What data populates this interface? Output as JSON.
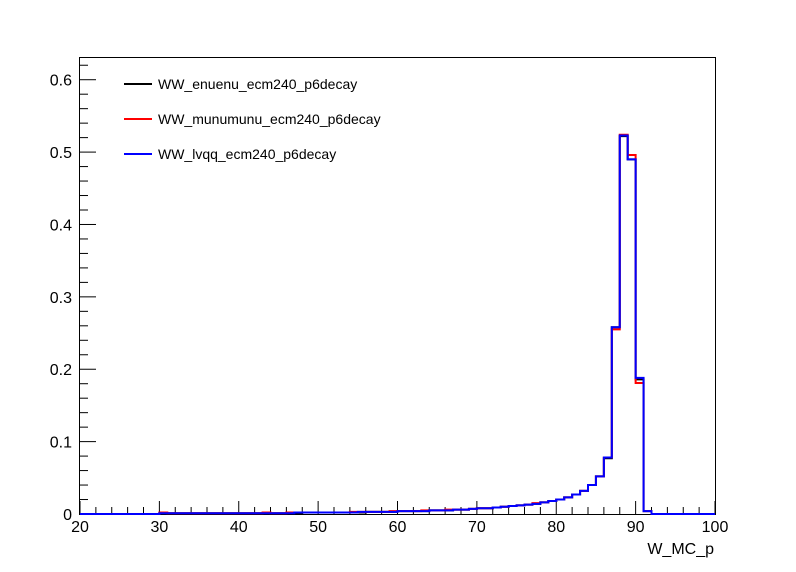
{
  "chart_data": {
    "type": "line",
    "title": "",
    "xlabel": "W_MC_p",
    "ylabel": "",
    "xlim": [
      20,
      100
    ],
    "ylim": [
      0,
      0.63
    ],
    "grid": false,
    "legend_position": "top-left",
    "x_ticks": [
      "20",
      "30",
      "40",
      "50",
      "60",
      "70",
      "80",
      "90",
      "100"
    ],
    "y_ticks": [
      "0",
      "0.1",
      "0.2",
      "0.3",
      "0.4",
      "0.5",
      "0.6"
    ],
    "bin_edges": [
      20,
      21,
      22,
      23,
      24,
      25,
      26,
      27,
      28,
      29,
      30,
      31,
      32,
      33,
      34,
      35,
      36,
      37,
      38,
      39,
      40,
      41,
      42,
      43,
      44,
      45,
      46,
      47,
      48,
      49,
      50,
      51,
      52,
      53,
      54,
      55,
      56,
      57,
      58,
      59,
      60,
      61,
      62,
      63,
      64,
      65,
      66,
      67,
      68,
      69,
      70,
      71,
      72,
      73,
      74,
      75,
      76,
      77,
      78,
      79,
      80,
      81,
      82,
      83,
      84,
      85,
      86,
      87,
      88,
      89,
      90,
      91,
      92,
      93,
      94,
      95,
      96,
      97,
      98,
      99,
      100
    ],
    "series": [
      {
        "name": "WW_enuenu_ecm240_p6decay",
        "color": "#000000",
        "values": [
          0,
          0,
          0,
          0,
          0,
          0,
          0,
          0,
          0,
          0,
          0.001,
          0.001,
          0.001,
          0.001,
          0.001,
          0.001,
          0.001,
          0.001,
          0.001,
          0.001,
          0.001,
          0.001,
          0.001,
          0.001,
          0.001,
          0.001,
          0.001,
          0.001,
          0.002,
          0.002,
          0.002,
          0.002,
          0.002,
          0.002,
          0.002,
          0.002,
          0.003,
          0.003,
          0.003,
          0.003,
          0.004,
          0.004,
          0.004,
          0.004,
          0.005,
          0.005,
          0.005,
          0.006,
          0.006,
          0.007,
          0.008,
          0.008,
          0.009,
          0.01,
          0.011,
          0.012,
          0.013,
          0.014,
          0.016,
          0.018,
          0.02,
          0.023,
          0.027,
          0.032,
          0.04,
          0.052,
          0.077,
          0.258,
          0.522,
          0.49,
          0.186,
          0.004,
          0,
          0,
          0,
          0,
          0,
          0,
          0,
          0
        ]
      },
      {
        "name": "WW_munumunu_ecm240_p6decay",
        "color": "#ff0000",
        "values": [
          0,
          0,
          0,
          0,
          0,
          0,
          0,
          0,
          0,
          0,
          0.002,
          0.001,
          0.001,
          0.001,
          0.001,
          0.001,
          0.001,
          0.001,
          0.001,
          0.001,
          0.001,
          0.001,
          0.001,
          0.002,
          0.001,
          0.001,
          0.002,
          0.002,
          0.002,
          0.002,
          0.002,
          0.002,
          0.002,
          0.002,
          0.003,
          0.003,
          0.003,
          0.003,
          0.003,
          0.004,
          0.004,
          0.004,
          0.004,
          0.005,
          0.005,
          0.005,
          0.006,
          0.006,
          0.006,
          0.007,
          0.008,
          0.008,
          0.009,
          0.01,
          0.011,
          0.012,
          0.013,
          0.015,
          0.016,
          0.018,
          0.02,
          0.023,
          0.027,
          0.032,
          0.04,
          0.052,
          0.078,
          0.255,
          0.524,
          0.496,
          0.181,
          0.004,
          0,
          0,
          0,
          0,
          0,
          0,
          0,
          0
        ]
      },
      {
        "name": "WW_lvqq_ecm240_p6decay",
        "color": "#0000ff",
        "values": [
          0,
          0,
          0,
          0,
          0,
          0,
          0,
          0,
          0,
          0,
          0.001,
          0.001,
          0.001,
          0.001,
          0.001,
          0.001,
          0.001,
          0.001,
          0.001,
          0.001,
          0.001,
          0.001,
          0.001,
          0.001,
          0.001,
          0.001,
          0.001,
          0.002,
          0.002,
          0.002,
          0.002,
          0.002,
          0.002,
          0.002,
          0.002,
          0.003,
          0.003,
          0.003,
          0.003,
          0.003,
          0.004,
          0.004,
          0.004,
          0.004,
          0.005,
          0.005,
          0.005,
          0.006,
          0.006,
          0.007,
          0.008,
          0.008,
          0.009,
          0.01,
          0.011,
          0.012,
          0.013,
          0.014,
          0.016,
          0.018,
          0.02,
          0.023,
          0.027,
          0.032,
          0.04,
          0.052,
          0.078,
          0.258,
          0.523,
          0.49,
          0.188,
          0.004,
          0,
          0,
          0,
          0,
          0,
          0,
          0,
          0
        ]
      }
    ]
  }
}
